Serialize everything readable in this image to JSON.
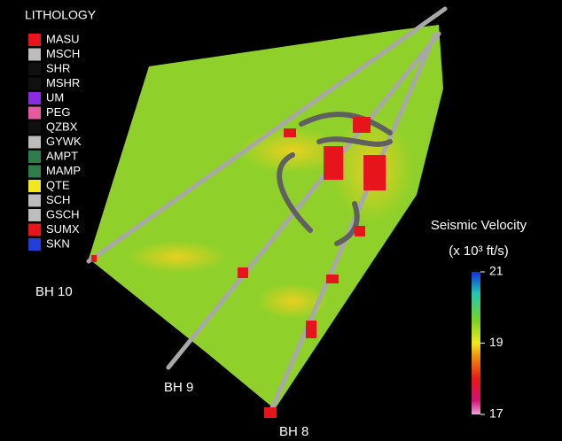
{
  "legend": {
    "title": "LITHOLOGY",
    "items": [
      {
        "label": "MASU",
        "color": "#e8141c"
      },
      {
        "label": "MSCH",
        "color": "#bdbdbd"
      },
      {
        "label": "SHR",
        "color": "#101010"
      },
      {
        "label": "MSHR",
        "color": "#101010"
      },
      {
        "label": "UM",
        "color": "#8a2be2"
      },
      {
        "label": "PEG",
        "color": "#e85aa0"
      },
      {
        "label": "QZBX",
        "color": "#101010"
      },
      {
        "label": "GYWK",
        "color": "#bdbdbd"
      },
      {
        "label": "AMPT",
        "color": "#2e7d4a"
      },
      {
        "label": "MAMP",
        "color": "#2e7d4a"
      },
      {
        "label": "QTE",
        "color": "#f2e81c"
      },
      {
        "label": "SCH",
        "color": "#bdbdbd"
      },
      {
        "label": "GSCH",
        "color": "#bdbdbd"
      },
      {
        "label": "SUMX",
        "color": "#e8141c"
      },
      {
        "label": "SKN",
        "color": "#1f3fd8"
      }
    ]
  },
  "colorbar": {
    "title": "Seismic Velocity",
    "units": "(x 10³ ft/s)",
    "range": [
      17,
      21
    ],
    "ticks": [
      21,
      19,
      17
    ]
  },
  "boreholes": [
    "BH 10",
    "BH 9",
    "BH 8"
  ]
}
